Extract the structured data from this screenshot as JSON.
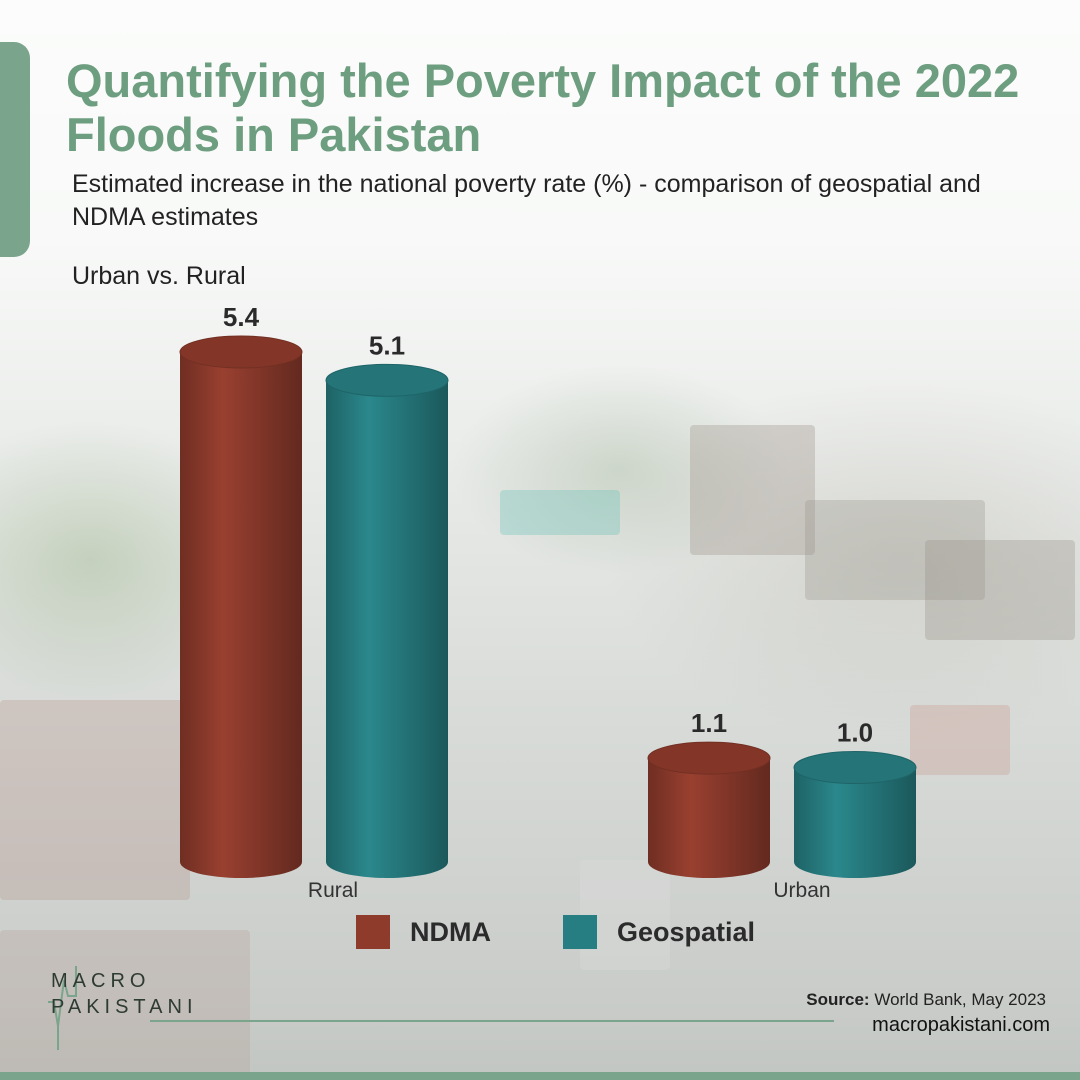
{
  "header": {
    "title": "Quantifying the Poverty Impact of the 2022 Floods in Pakistan",
    "subtitle": "Estimated increase in the national poverty rate (%) - comparison of geospatial and NDMA estimates",
    "panel_label": "Urban vs. Rural"
  },
  "colors": {
    "accent": "#7aa58c",
    "title": "#6e9e80",
    "ndma": "#8e3b2c",
    "geospatial": "#277e82"
  },
  "chart_data": {
    "type": "bar",
    "style": "3d-cylinder",
    "categories": [
      "Rural",
      "Urban"
    ],
    "series": [
      {
        "name": "NDMA",
        "color": "#8e3b2c",
        "values": [
          5.4,
          1.1
        ]
      },
      {
        "name": "Geospatial",
        "color": "#277e82",
        "values": [
          5.1,
          1.0
        ]
      }
    ],
    "title": "",
    "xlabel": "",
    "ylabel": "",
    "ylim": [
      0,
      5.4
    ],
    "grid": false,
    "legend": "bottom-center",
    "data_labels": true
  },
  "footer": {
    "logo_line1": "MACRO",
    "logo_line2": "PAKISTANI",
    "source_label": "Source:",
    "source_text": "World Bank, May 2023",
    "website": "macropakistani.com"
  }
}
